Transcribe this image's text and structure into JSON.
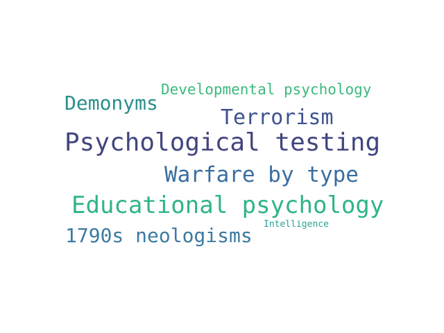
{
  "words": [
    {
      "text": "Developmental psychology",
      "color": "#3db97e"
    },
    {
      "text": "Demonyms",
      "color": "#2a8f8a"
    },
    {
      "text": "Terrorism",
      "color": "#3d5291"
    },
    {
      "text": "Psychological testing",
      "color": "#41457f"
    },
    {
      "text": "Warfare by type",
      "color": "#3a6ea0"
    },
    {
      "text": "Educational psychology",
      "color": "#2fb48a"
    },
    {
      "text": "1790s neologisms",
      "color": "#3b7aa1"
    },
    {
      "text": "Intelligence",
      "color": "#2aa290"
    }
  ]
}
